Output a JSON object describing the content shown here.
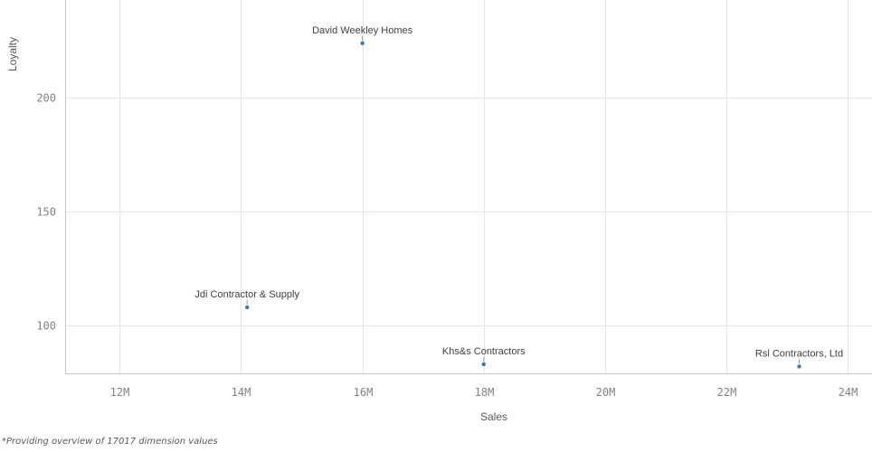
{
  "chart_data": {
    "type": "scatter",
    "xlabel": "Sales",
    "ylabel": "Loyalty",
    "xlim": [
      11100000,
      24400000
    ],
    "ylim": [
      79,
      243
    ],
    "x_ticks": [
      12000000,
      14000000,
      16000000,
      18000000,
      20000000,
      22000000,
      24000000
    ],
    "x_tick_labels": [
      "12M",
      "14M",
      "16M",
      "18M",
      "20M",
      "22M",
      "24M"
    ],
    "y_ticks": [
      100,
      150,
      200
    ],
    "y_tick_labels": [
      "100",
      "150",
      "200"
    ],
    "grid": true,
    "point_color": "#4477aa",
    "points": [
      {
        "label": "David Weekley Homes",
        "x": 16000000,
        "y": 224
      },
      {
        "label": "Jdi Contractor & Supply",
        "x": 14100000,
        "y": 108
      },
      {
        "label": "Khs&s Contractors",
        "x": 18000000,
        "y": 83
      },
      {
        "label": "Rsl Contractors, Ltd",
        "x": 23200000,
        "y": 82
      }
    ]
  },
  "footnote": "*Providing overview of 17017 dimension values"
}
